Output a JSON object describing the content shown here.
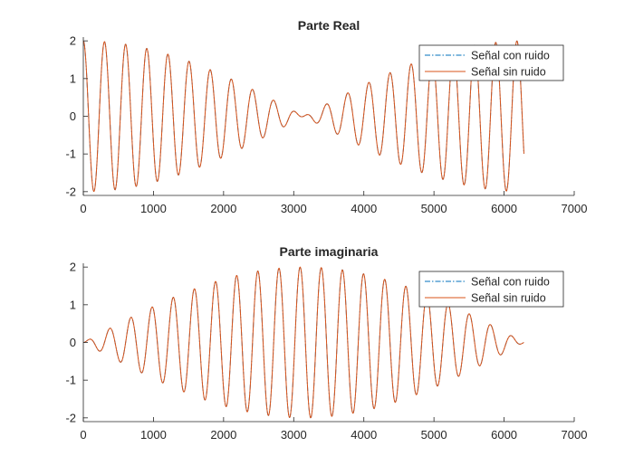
{
  "colors": {
    "noisy": "#0072BD",
    "clean": "#D95319",
    "axis": "#262626",
    "background": "#ffffff"
  },
  "chart_data": [
    {
      "type": "line",
      "title": "Parte Real",
      "xlabel": "",
      "ylabel": "",
      "xlim": [
        0,
        7000
      ],
      "ylim": [
        -2.1,
        2.1
      ],
      "xticks": [
        0,
        1000,
        2000,
        3000,
        4000,
        5000,
        6000,
        7000
      ],
      "yticks": [
        -2,
        -1,
        0,
        1,
        2
      ],
      "grid": false,
      "legend_position": "top-right",
      "x_range": [
        0,
        6283
      ],
      "envelope": "2*cos(x/2000)",
      "wave": "cos(x/48)",
      "series": [
        {
          "name": "Señal con ruido",
          "style": "dash-dot",
          "color": "#0072BD"
        },
        {
          "name": "Señal sin ruido",
          "style": "solid",
          "color": "#D95319"
        }
      ]
    },
    {
      "type": "line",
      "title": "Parte imaginaria",
      "xlabel": "",
      "ylabel": "",
      "xlim": [
        0,
        7000
      ],
      "ylim": [
        -2.1,
        2.1
      ],
      "xticks": [
        0,
        1000,
        2000,
        3000,
        4000,
        5000,
        6000,
        7000
      ],
      "yticks": [
        -2,
        -1,
        0,
        1,
        2
      ],
      "grid": false,
      "legend_position": "top-right",
      "x_range": [
        0,
        6283
      ],
      "envelope": "2*sin(x/2000)",
      "wave": "sin(x/48)",
      "series": [
        {
          "name": "Señal con ruido",
          "style": "dash-dot",
          "color": "#0072BD"
        },
        {
          "name": "Señal sin ruido",
          "style": "solid",
          "color": "#D95319"
        }
      ]
    }
  ]
}
